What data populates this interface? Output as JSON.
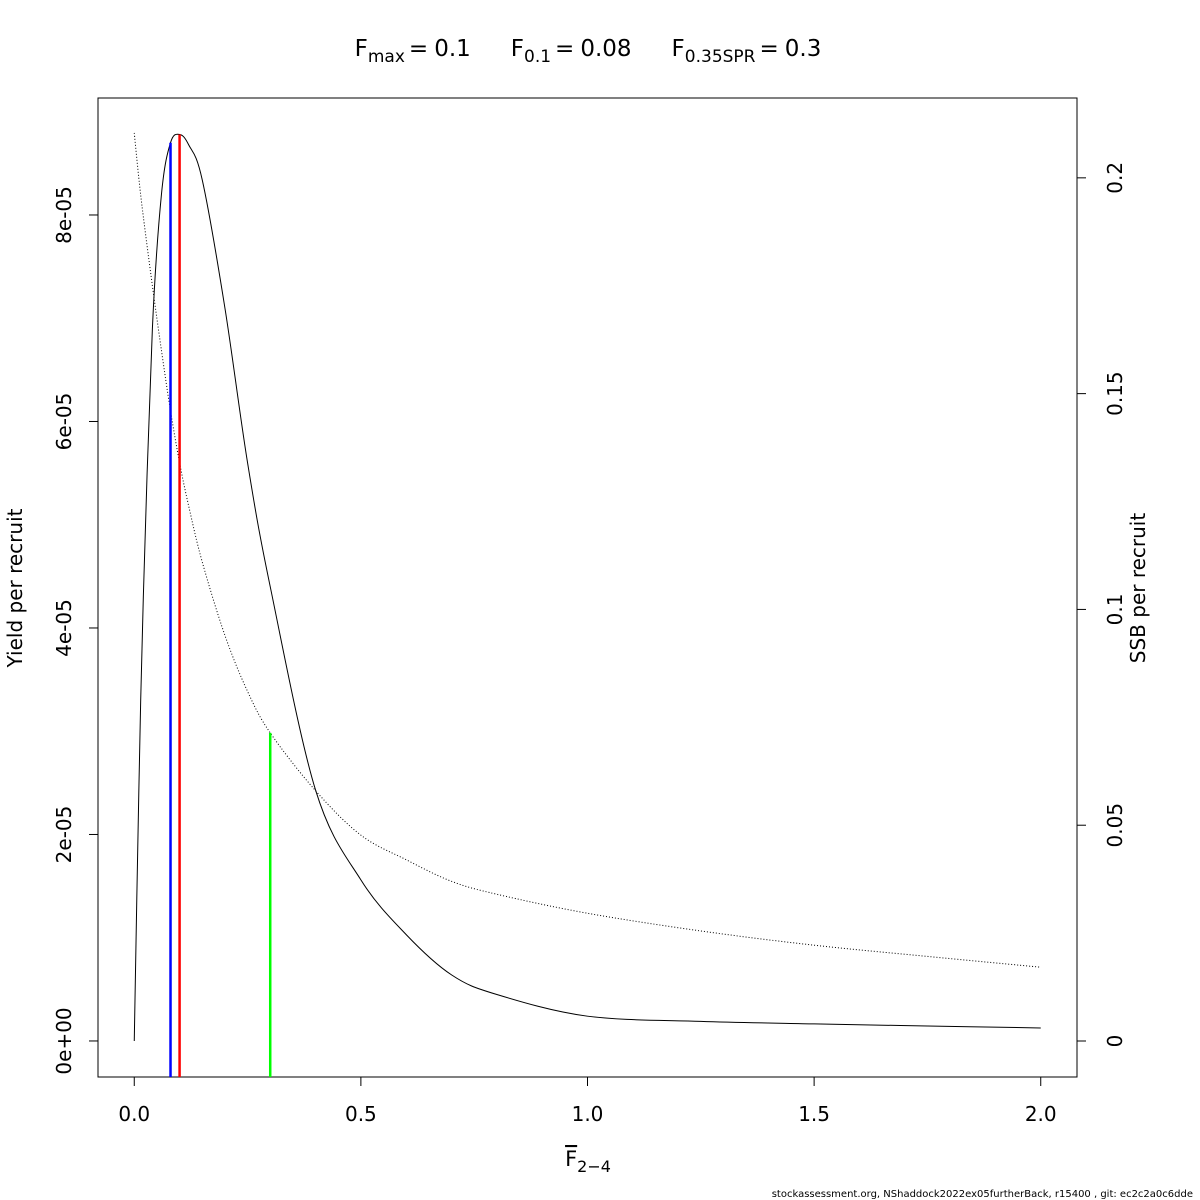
{
  "chart_data": {
    "type": "line",
    "title_separator": "=",
    "reference_points": [
      {
        "symbol": "F",
        "subscript": "max",
        "value": 0.1,
        "color": "#ff0000",
        "top": 8.78e-05,
        "axis": "y"
      },
      {
        "symbol": "F",
        "subscript": "0.1",
        "value": 0.08,
        "color": "#0000ff",
        "top": 8.7e-05,
        "axis": "y"
      },
      {
        "symbol": "F",
        "subscript": "0.35SPR",
        "value": 0.3,
        "color": "#00ff00",
        "top": 0.0714,
        "axis": "y2"
      }
    ],
    "x_label": {
      "symbol": "F",
      "subscript": "2−4"
    },
    "y_label": "Yield per recruit",
    "y2_label": "SSB per recruit",
    "footer": "stockassessment.org, NShaddock2022ex05furtherBack, r15400 , git: ec2c2a0c6dde",
    "x": [
      0,
      0.01,
      0.02,
      0.04,
      0.06,
      0.08,
      0.1,
      0.12,
      0.15,
      0.2,
      0.25,
      0.3,
      0.4,
      0.5,
      0.6,
      0.7,
      0.8,
      1.0,
      1.25,
      1.5,
      1.75,
      2.0
    ],
    "series": [
      {
        "name": "Yield per recruit",
        "color": "#000000",
        "dash": "solid",
        "values": [
          0,
          2.4e-05,
          4.3e-05,
          6.9e-05,
          8.2e-05,
          8.7e-05,
          8.78e-05,
          8.68e-05,
          8.34e-05,
          7.1e-05,
          5.6e-05,
          4.4e-05,
          2.43e-05,
          1.56e-05,
          1.03e-05,
          6.4e-06,
          4.5e-06,
          2.4e-06,
          1.9e-06,
          1.65e-06,
          1.45e-06,
          1.26e-06
        ]
      },
      {
        "name": "SSB per recruit",
        "color": "#000000",
        "dash": "dotted",
        "axis": "y2",
        "values": [
          0.2104,
          0.2,
          0.191,
          0.175,
          0.16,
          0.146,
          0.134,
          0.124,
          0.111,
          0.094,
          0.081,
          0.0714,
          0.058,
          0.0477,
          0.042,
          0.037,
          0.034,
          0.0296,
          0.0255,
          0.0222,
          0.0196,
          0.0171
        ]
      }
    ],
    "xlim": [
      -0.08,
      2.08
    ],
    "xticks": [
      {
        "value": 0,
        "label": "0.0"
      },
      {
        "value": 0.5,
        "label": "0.5"
      },
      {
        "value": 1,
        "label": "1.0"
      },
      {
        "value": 1.5,
        "label": "1.5"
      },
      {
        "value": 2,
        "label": "2.0"
      }
    ],
    "ylim": [
      -3.49e-06,
      9.133e-05
    ],
    "yticks": [
      {
        "value": 0,
        "label": "0e+00"
      },
      {
        "value": 2e-05,
        "label": "2e-05"
      },
      {
        "value": 4e-05,
        "label": "4e-05"
      },
      {
        "value": 6e-05,
        "label": "6e-05"
      },
      {
        "value": 8e-05,
        "label": "8e-05"
      }
    ],
    "y2lim": [
      -0.00834,
      0.2185
    ],
    "y2ticks": [
      0,
      0.05,
      0.1,
      0.15,
      0.2
    ]
  }
}
